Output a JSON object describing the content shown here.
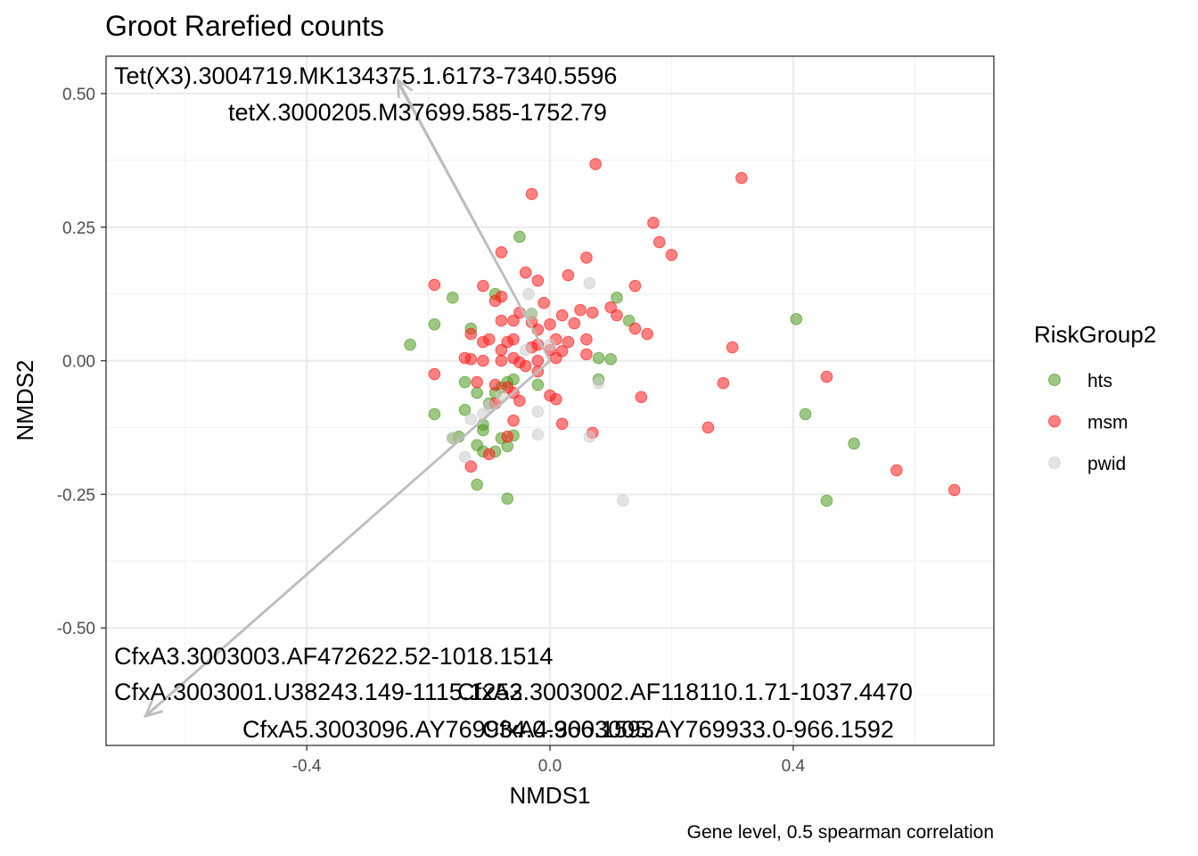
{
  "chart_data": {
    "type": "scatter",
    "title": "Groot Rarefied counts",
    "xlabel": "NMDS1",
    "ylabel": "NMDS2",
    "caption": "Gene level, 0.5 spearman correlation",
    "xlim": [
      -0.73,
      0.73
    ],
    "ylim": [
      -0.72,
      0.57
    ],
    "x_ticks": [
      -0.4,
      0.0,
      0.4
    ],
    "x_tick_labels": [
      "-0.4",
      "0.0",
      "0.4"
    ],
    "y_ticks": [
      -0.5,
      -0.25,
      0.0,
      0.25,
      0.5
    ],
    "y_tick_labels": [
      "-0.50",
      "-0.25",
      "0.00",
      "0.25",
      "0.50"
    ],
    "grid": true,
    "legend": {
      "title": "RiskGroup2",
      "position": "right"
    },
    "series": [
      {
        "name": "hts",
        "color": "#4d9a1f",
        "points": [
          [
            -0.05,
            0.232
          ],
          [
            -0.09,
            0.125
          ],
          [
            -0.16,
            0.118
          ],
          [
            -0.19,
            0.068
          ],
          [
            -0.23,
            0.03
          ],
          [
            -0.13,
            0.06
          ],
          [
            -0.03,
            0.088
          ],
          [
            0.11,
            0.118
          ],
          [
            0.13,
            0.075
          ],
          [
            0.08,
            0.005
          ],
          [
            0.1,
            0.003
          ],
          [
            0.08,
            -0.035
          ],
          [
            -0.02,
            -0.045
          ],
          [
            -0.07,
            -0.04
          ],
          [
            -0.06,
            -0.035
          ],
          [
            -0.09,
            -0.06
          ],
          [
            -0.14,
            -0.04
          ],
          [
            -0.12,
            -0.06
          ],
          [
            -0.1,
            -0.08
          ],
          [
            -0.14,
            -0.092
          ],
          [
            -0.19,
            -0.1
          ],
          [
            -0.15,
            -0.142
          ],
          [
            -0.11,
            -0.12
          ],
          [
            -0.11,
            -0.13
          ],
          [
            -0.08,
            -0.145
          ],
          [
            -0.06,
            -0.14
          ],
          [
            -0.16,
            -0.145
          ],
          [
            -0.12,
            -0.158
          ],
          [
            -0.11,
            -0.17
          ],
          [
            -0.09,
            -0.17
          ],
          [
            -0.07,
            -0.16
          ],
          [
            -0.12,
            -0.232
          ],
          [
            -0.07,
            -0.258
          ],
          [
            0.405,
            0.078
          ],
          [
            0.42,
            -0.1
          ],
          [
            0.5,
            -0.155
          ],
          [
            0.455,
            -0.262
          ],
          [
            -0.08,
            -0.05
          ]
        ]
      },
      {
        "name": "msm",
        "color": "#ff1a1a",
        "points": [
          [
            0.075,
            0.368
          ],
          [
            0.315,
            0.342
          ],
          [
            -0.03,
            0.312
          ],
          [
            0.17,
            0.258
          ],
          [
            0.18,
            0.222
          ],
          [
            0.2,
            0.198
          ],
          [
            -0.08,
            0.203
          ],
          [
            0.06,
            0.193
          ],
          [
            -0.04,
            0.165
          ],
          [
            -0.02,
            0.15
          ],
          [
            0.03,
            0.16
          ],
          [
            -0.19,
            0.142
          ],
          [
            -0.11,
            0.14
          ],
          [
            0.14,
            0.14
          ],
          [
            -0.08,
            0.12
          ],
          [
            -0.09,
            0.112
          ],
          [
            -0.01,
            0.108
          ],
          [
            0.05,
            0.095
          ],
          [
            0.1,
            0.1
          ],
          [
            0.11,
            0.085
          ],
          [
            0.07,
            0.09
          ],
          [
            0.02,
            0.085
          ],
          [
            -0.05,
            0.09
          ],
          [
            -0.06,
            0.075
          ],
          [
            -0.08,
            0.075
          ],
          [
            -0.03,
            0.072
          ],
          [
            0.0,
            0.068
          ],
          [
            0.04,
            0.07
          ],
          [
            -0.13,
            0.05
          ],
          [
            -0.02,
            0.058
          ],
          [
            0.14,
            0.06
          ],
          [
            0.16,
            0.05
          ],
          [
            -0.1,
            0.04
          ],
          [
            -0.11,
            0.035
          ],
          [
            -0.07,
            0.035
          ],
          [
            -0.06,
            0.04
          ],
          [
            0.01,
            0.04
          ],
          [
            0.03,
            0.035
          ],
          [
            0.06,
            0.04
          ],
          [
            -0.02,
            0.03
          ],
          [
            -0.03,
            0.025
          ],
          [
            -0.08,
            0.02
          ],
          [
            0.0,
            0.02
          ],
          [
            0.02,
            0.018
          ],
          [
            0.06,
            0.012
          ],
          [
            -0.14,
            0.005
          ],
          [
            -0.13,
            0.003
          ],
          [
            -0.11,
            0.0
          ],
          [
            -0.08,
            0.0
          ],
          [
            -0.05,
            -0.003
          ],
          [
            -0.02,
            0.0
          ],
          [
            0.01,
            0.005
          ],
          [
            0.3,
            0.025
          ],
          [
            -0.19,
            -0.025
          ],
          [
            -0.12,
            -0.04
          ],
          [
            -0.09,
            -0.045
          ],
          [
            -0.07,
            -0.05
          ],
          [
            -0.06,
            -0.06
          ],
          [
            -0.09,
            -0.08
          ],
          [
            -0.05,
            -0.075
          ],
          [
            0.0,
            -0.065
          ],
          [
            0.01,
            -0.072
          ],
          [
            -0.06,
            -0.112
          ],
          [
            -0.07,
            -0.142
          ],
          [
            0.07,
            -0.135
          ],
          [
            0.02,
            -0.118
          ],
          [
            0.15,
            -0.068
          ],
          [
            0.285,
            -0.042
          ],
          [
            0.26,
            -0.125
          ],
          [
            -0.13,
            -0.198
          ],
          [
            -0.04,
            -0.01
          ],
          [
            0.455,
            -0.03
          ],
          [
            0.57,
            -0.205
          ],
          [
            0.665,
            -0.242
          ],
          [
            -0.1,
            -0.175
          ],
          [
            -0.02,
            -0.02
          ],
          [
            -0.06,
            0.005
          ]
        ]
      },
      {
        "name": "pwid",
        "color": "#cccccc",
        "points": [
          [
            0.065,
            0.145
          ],
          [
            -0.035,
            0.125
          ],
          [
            -0.03,
            0.088
          ],
          [
            0.08,
            -0.042
          ],
          [
            -0.1,
            -0.085
          ],
          [
            -0.11,
            -0.1
          ],
          [
            -0.02,
            -0.095
          ],
          [
            -0.02,
            -0.138
          ],
          [
            0.065,
            -0.142
          ],
          [
            -0.16,
            -0.145
          ],
          [
            -0.14,
            -0.18
          ],
          [
            0.12,
            -0.262
          ],
          [
            0.0,
            0.03
          ],
          [
            -0.04,
            0.02
          ],
          [
            -0.13,
            -0.11
          ],
          [
            -0.08,
            -0.065
          ]
        ]
      }
    ],
    "vectors": [
      {
        "label": "Tet(X3).3004719.MK134375.1.6173-7340.5596",
        "end": [
          -0.25,
          0.525
        ]
      },
      {
        "label": "tetX.3000205.M37699.585-1752.79",
        "end": [
          -0.25,
          0.525
        ]
      },
      {
        "label": "CfxA3.3003003.AF472622.52-1018.1514",
        "end": [
          -0.665,
          -0.665
        ]
      },
      {
        "label": "CfxA.3003001.U38243.149-1115.1253",
        "end": [
          -0.665,
          -0.665
        ]
      },
      {
        "label": "CfxA2.3003002.AF118110.1.71-1037.4470",
        "end": [
          -0.665,
          -0.665
        ]
      },
      {
        "label": "CfxA5.3003096.AY769934.0-966.1593",
        "end": [
          -0.665,
          -0.665
        ]
      },
      {
        "label": "CfxA4.3003005.AY769933.0-966.1592",
        "end": [
          -0.665,
          -0.665
        ]
      }
    ]
  }
}
